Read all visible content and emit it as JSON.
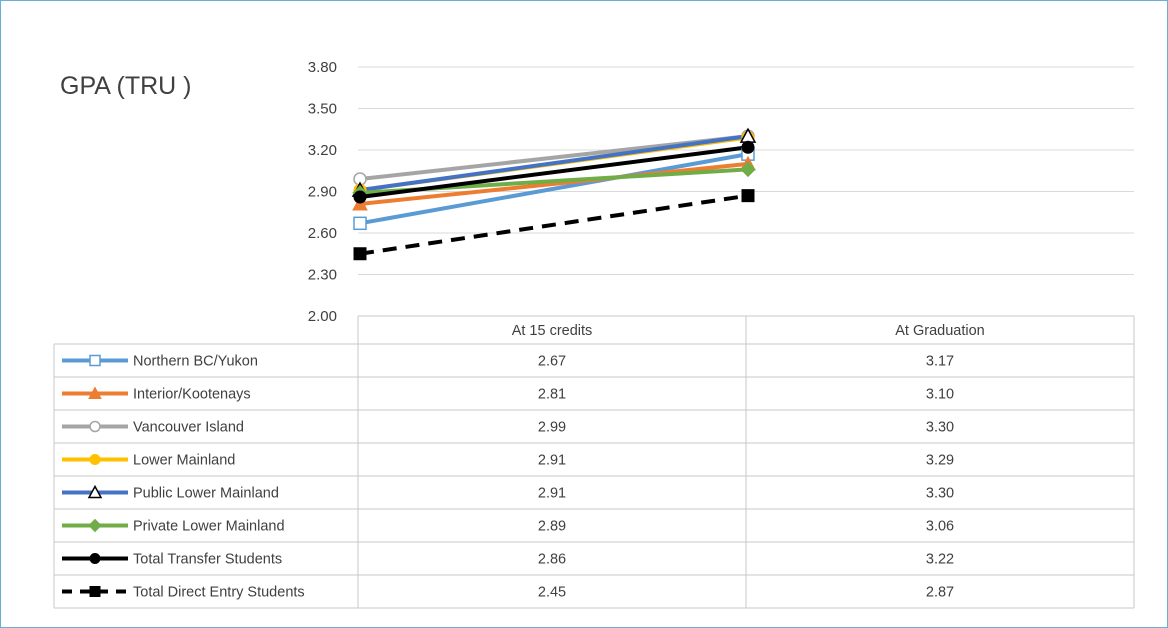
{
  "chart_data": {
    "type": "line",
    "title": "GPA (TRU )",
    "categories": [
      "At 15 credits",
      "At Graduation"
    ],
    "y_ticks": [
      "3.80",
      "3.50",
      "3.20",
      "2.90",
      "2.60",
      "2.30",
      "2.00"
    ],
    "ylim": [
      2.0,
      3.8
    ],
    "grid": true,
    "legend": "data-table",
    "series": [
      {
        "name": "Northern BC/Yukon",
        "values": [
          2.67,
          3.17
        ],
        "labels": [
          "2.67",
          "3.17"
        ],
        "color": "#5b9bd5",
        "marker": "square-open",
        "dash": false
      },
      {
        "name": "Interior/Kootenays",
        "values": [
          2.81,
          3.1
        ],
        "labels": [
          "2.81",
          "3.10"
        ],
        "color": "#ed7d31",
        "marker": "triangle",
        "dash": false
      },
      {
        "name": "Vancouver Island",
        "values": [
          2.99,
          3.3
        ],
        "labels": [
          "2.99",
          "3.30"
        ],
        "color": "#a5a5a5",
        "marker": "circle-open",
        "dash": false
      },
      {
        "name": "Lower Mainland",
        "values": [
          2.91,
          3.29
        ],
        "labels": [
          "2.91",
          "3.29"
        ],
        "color": "#ffc000",
        "marker": "circle",
        "dash": false
      },
      {
        "name": "Public Lower Mainland",
        "values": [
          2.91,
          3.3
        ],
        "labels": [
          "2.91",
          "3.30"
        ],
        "color": "#4472c4",
        "marker": "triangle-open",
        "dash": false
      },
      {
        "name": "Private Lower Mainland",
        "values": [
          2.89,
          3.06
        ],
        "labels": [
          "2.89",
          "3.06"
        ],
        "color": "#70ad47",
        "marker": "diamond",
        "dash": false
      },
      {
        "name": "Total Transfer Students",
        "values": [
          2.86,
          3.22
        ],
        "labels": [
          "2.86",
          "3.22"
        ],
        "color": "#000000",
        "marker": "circle",
        "dash": false
      },
      {
        "name": "Total Direct Entry Students",
        "values": [
          2.45,
          2.87
        ],
        "labels": [
          "2.45",
          "2.87"
        ],
        "color": "#000000",
        "marker": "square",
        "dash": true
      }
    ]
  }
}
